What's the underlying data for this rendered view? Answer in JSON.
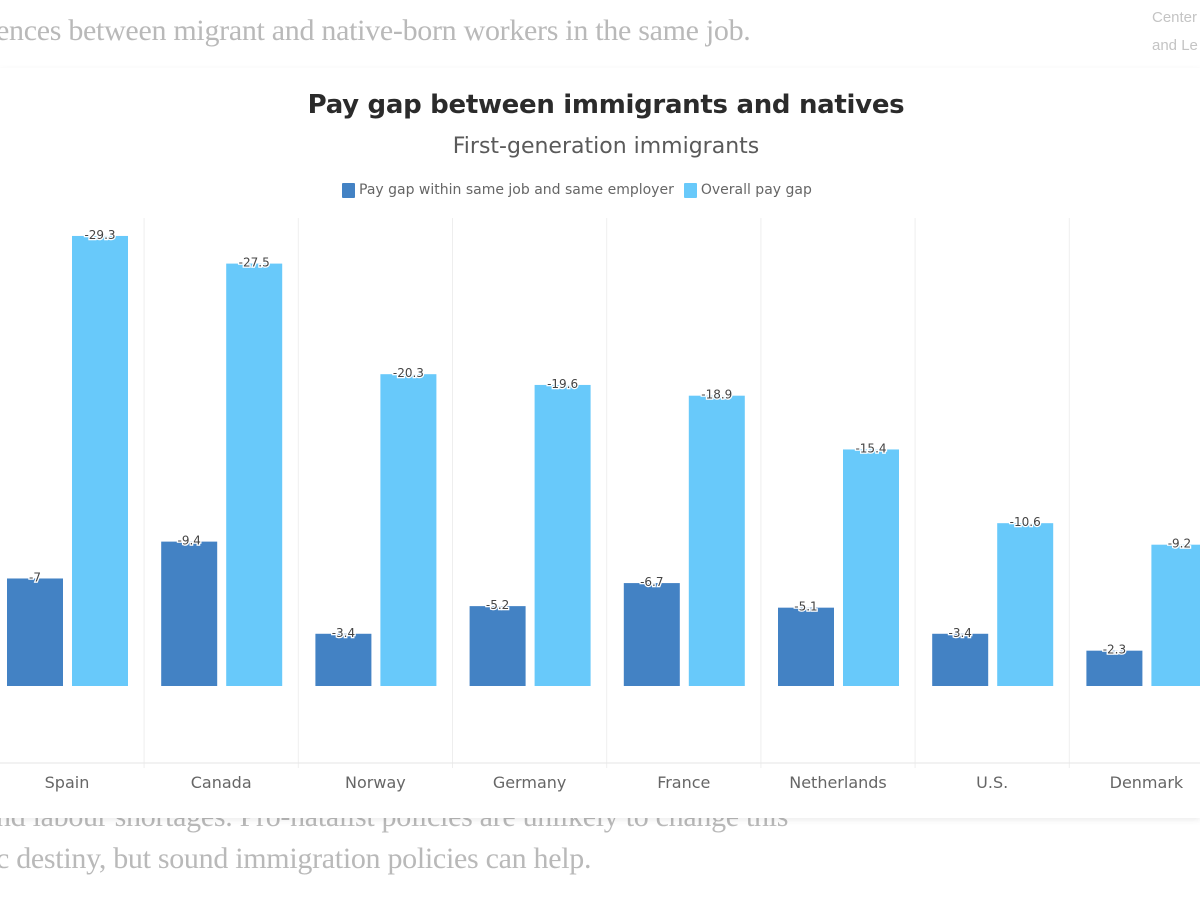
{
  "background": {
    "line_top": "ences between migrant and native-born workers in the same job.",
    "line_bottom_1": "nd labour shortages. Pro-natalist policies are unlikely to change this",
    "line_bottom_2": "c destiny, but sound immigration policies can help.",
    "side_line_1": "Center",
    "side_line_2": "and Le"
  },
  "colors": {
    "same_job": "#4382c4",
    "overall": "#68c9fa"
  },
  "chart_data": {
    "type": "bar",
    "title": "Pay gap between immigrants and natives",
    "subtitle": "First-generation immigrants",
    "xlabel": "",
    "ylabel": "",
    "categories": [
      "Spain",
      "Canada",
      "Norway",
      "Germany",
      "France",
      "Netherlands",
      "U.S.",
      "Denmark"
    ],
    "series": [
      {
        "name": "Pay gap within same job and same employer",
        "values": [
          -7,
          -9.4,
          -3.4,
          -5.2,
          -6.7,
          -5.1,
          -3.4,
          -2.3
        ],
        "labels": [
          "-7",
          "-9.4",
          "-3.4",
          "-5.2",
          "-6.7",
          "-5.1",
          "-3.4",
          "-2.3"
        ]
      },
      {
        "name": "Overall pay gap",
        "values": [
          -29.3,
          -27.5,
          -20.3,
          -19.6,
          -18.9,
          -15.4,
          -10.6,
          -9.2
        ],
        "labels": [
          "-29.3",
          "-27.5",
          "-20.3",
          "-19.6",
          "-18.9",
          "-15.4",
          "-10.6",
          "-9.2"
        ]
      }
    ],
    "ylim": [
      -30,
      0
    ],
    "bars_direction": "upward magnitude",
    "grid": "vertical category separators",
    "legend_position": "top-center"
  }
}
